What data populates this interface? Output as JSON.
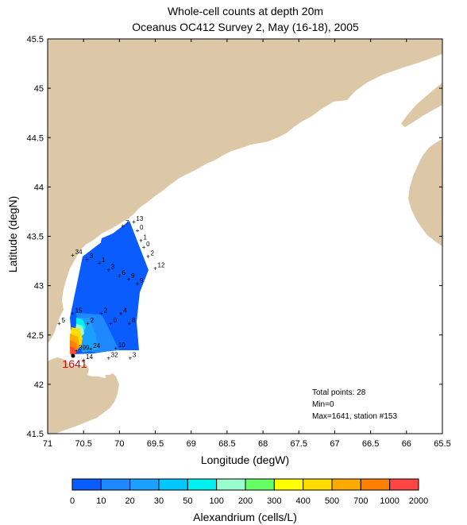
{
  "title": {
    "line1": "Whole-cell counts at depth 20m",
    "line2": "Oceanus OC412 Survey 2, May (16-18), 2005"
  },
  "axes": {
    "xlabel": "Longitude (degW)",
    "ylabel": "Latitude (degN)",
    "xticks": [
      "71",
      "70.5",
      "70",
      "69.5",
      "69",
      "68.5",
      "68",
      "67.5",
      "67",
      "66.5",
      "66",
      "65.5"
    ],
    "yticks": [
      "45.5",
      "45",
      "44.5",
      "44",
      "43.5",
      "43",
      "42.5",
      "42",
      "41.5"
    ],
    "xlim": [
      71,
      65.5
    ],
    "ylim": [
      41.5,
      45.5
    ]
  },
  "stats": {
    "total": "Total points: 28",
    "min": "Min=0",
    "max": "Max=1641, station #153"
  },
  "max_label": "1641",
  "colorbar": {
    "title": "Alexandrium (cells/L)",
    "ticks": [
      "0",
      "10",
      "20",
      "30",
      "50",
      "100",
      "200",
      "300",
      "400",
      "500",
      "700",
      "1000",
      "2000"
    ],
    "colors": [
      "#0a5cff",
      "#1e88ff",
      "#1ca0ff",
      "#00c8ff",
      "#00f0f0",
      "#99ffcc",
      "#66ff66",
      "#ffff00",
      "#ffdd00",
      "#ffaa00",
      "#ff7f00",
      "#ff4444"
    ]
  },
  "colors": {
    "land": "#dcc8a6",
    "water": "#ffffff",
    "interp_region": "#0a5cff",
    "max_station": "#dd0000"
  },
  "station_labels": [
    {
      "text": "7",
      "lon": 69.95,
      "lat": 43.61
    },
    {
      "text": "13",
      "lon": 69.8,
      "lat": 43.65
    },
    {
      "text": "0",
      "lon": 69.75,
      "lat": 43.56
    },
    {
      "text": "1",
      "lon": 69.7,
      "lat": 43.46
    },
    {
      "text": "0",
      "lon": 69.66,
      "lat": 43.39
    },
    {
      "text": "2",
      "lon": 69.6,
      "lat": 43.3
    },
    {
      "text": "12",
      "lon": 69.5,
      "lat": 43.18
    },
    {
      "text": "34",
      "lon": 70.65,
      "lat": 43.31
    },
    {
      "text": "3",
      "lon": 70.45,
      "lat": 43.27
    },
    {
      "text": "1",
      "lon": 70.28,
      "lat": 43.23
    },
    {
      "text": "3",
      "lon": 70.15,
      "lat": 43.16
    },
    {
      "text": "6",
      "lon": 70.0,
      "lat": 43.1
    },
    {
      "text": "9",
      "lon": 69.87,
      "lat": 43.07
    },
    {
      "text": "9",
      "lon": 69.75,
      "lat": 43.02
    },
    {
      "text": "15",
      "lon": 70.65,
      "lat": 42.72
    },
    {
      "text": "2",
      "lon": 70.25,
      "lat": 42.72
    },
    {
      "text": "4",
      "lon": 69.98,
      "lat": 42.72
    },
    {
      "text": "5",
      "lon": 70.84,
      "lat": 42.62
    },
    {
      "text": "2",
      "lon": 70.44,
      "lat": 42.62
    },
    {
      "text": "0",
      "lon": 70.12,
      "lat": 42.62
    },
    {
      "text": "8",
      "lon": 69.86,
      "lat": 42.62
    },
    {
      "text": "399",
      "lon": 70.6,
      "lat": 42.34
    },
    {
      "text": "24",
      "lon": 70.4,
      "lat": 42.36
    },
    {
      "text": "10",
      "lon": 70.05,
      "lat": 42.37
    },
    {
      "text": "14",
      "lon": 70.5,
      "lat": 42.25
    },
    {
      "text": "32",
      "lon": 70.15,
      "lat": 42.27
    },
    {
      "text": "3",
      "lon": 69.85,
      "lat": 42.27
    }
  ]
}
